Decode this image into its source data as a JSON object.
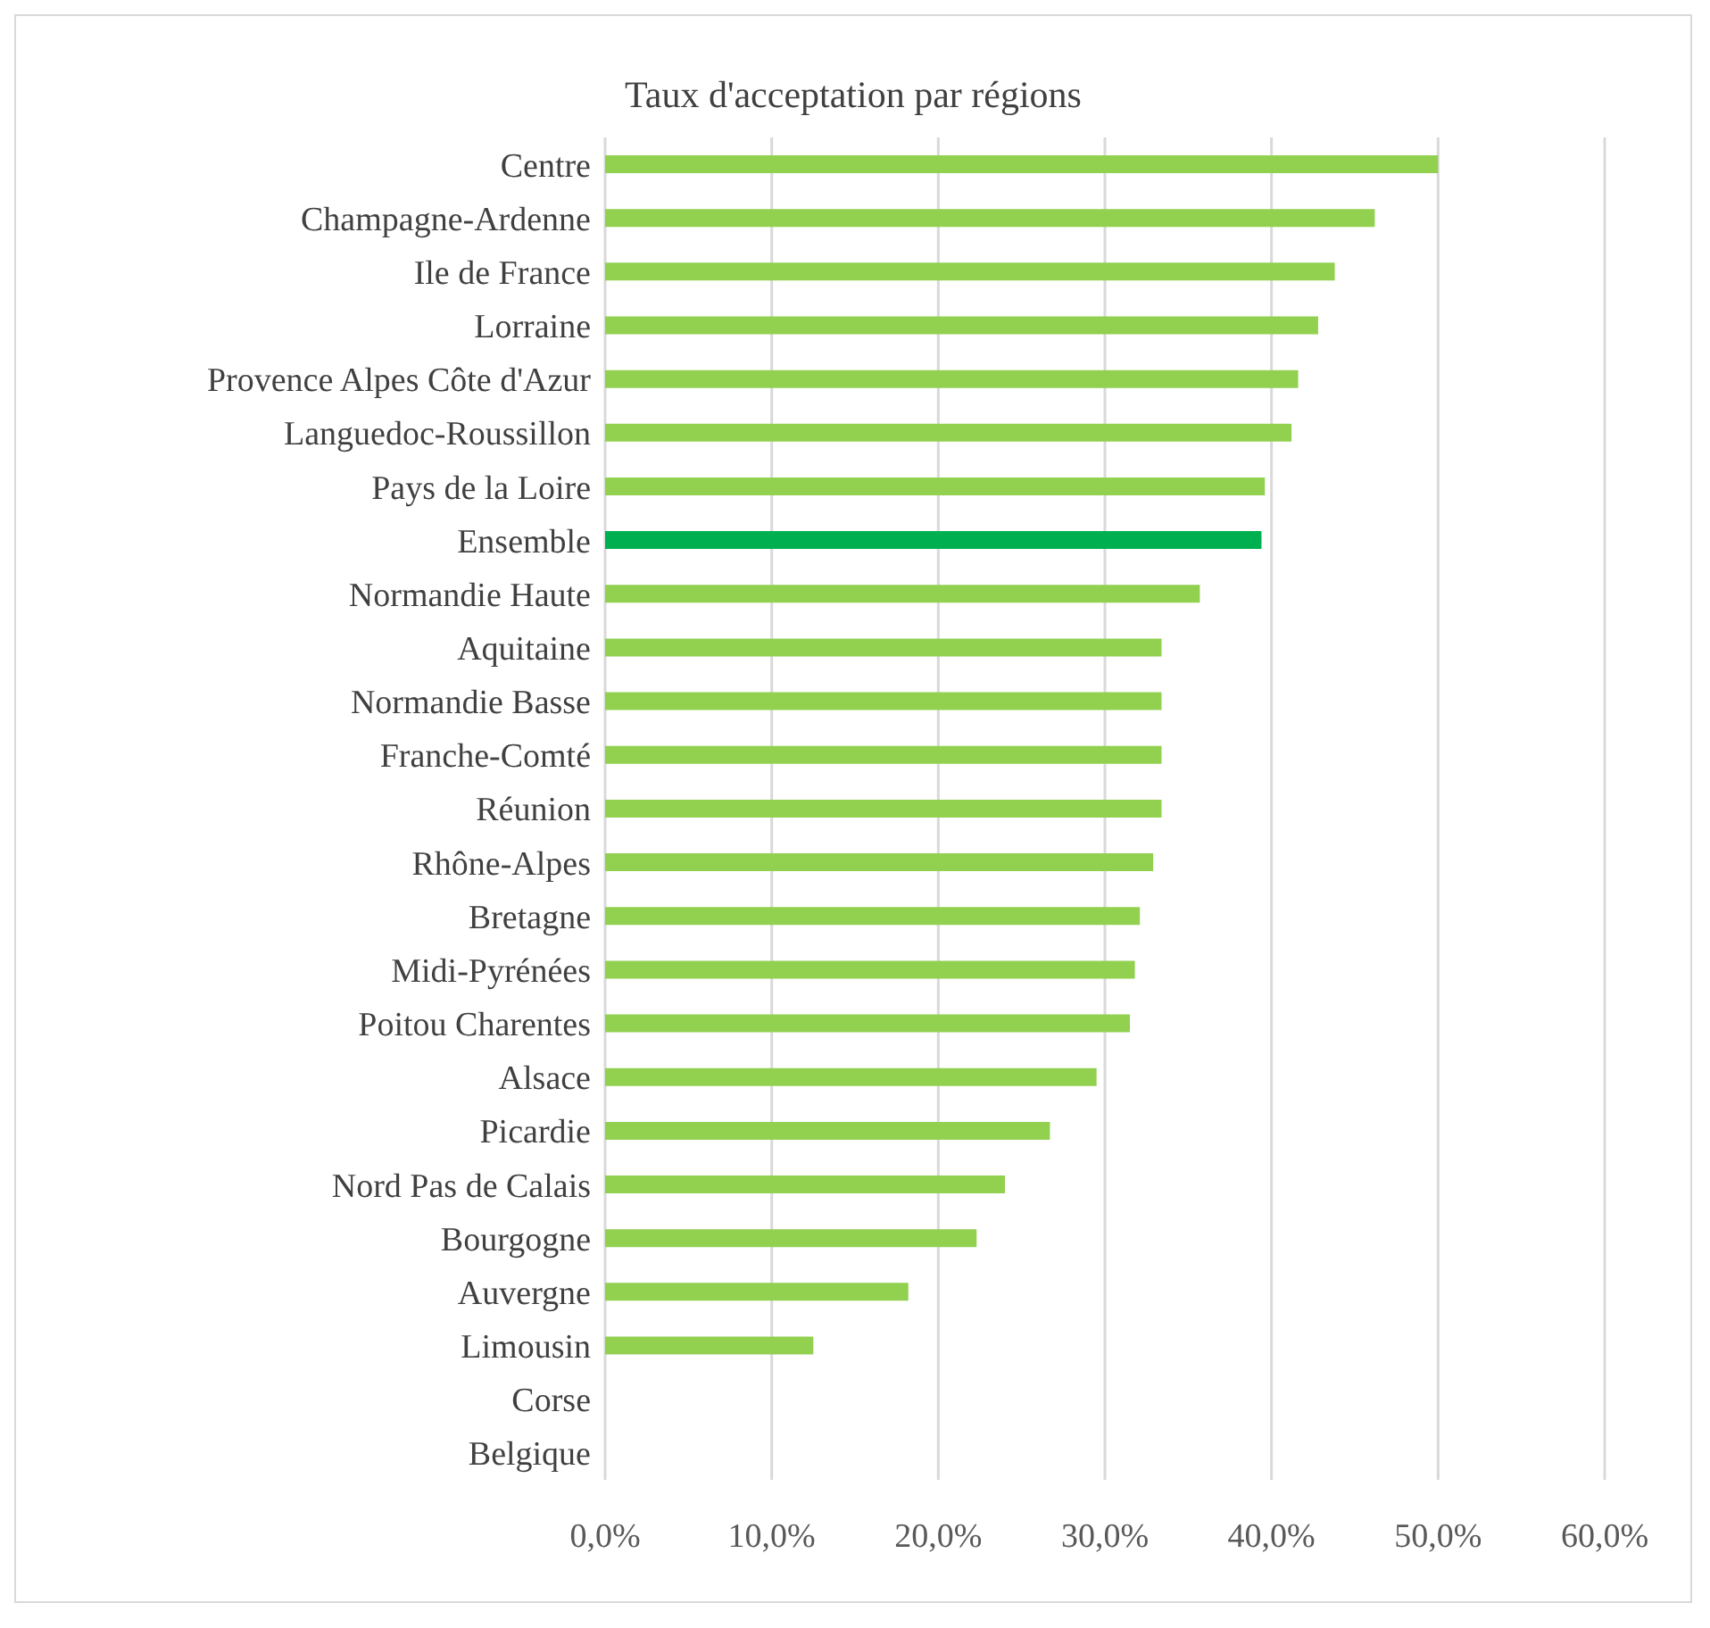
{
  "chart_data": {
    "type": "bar",
    "orientation": "horizontal",
    "title": "Taux d'acceptation par régions",
    "categories": [
      "Centre",
      "Champagne-Ardenne",
      "Ile de France",
      "Lorraine",
      "Provence Alpes Côte d'Azur",
      "Languedoc-Roussillon",
      "Pays de la Loire",
      "Ensemble",
      "Normandie Haute",
      "Aquitaine",
      "Normandie Basse",
      "Franche-Comté",
      "Réunion",
      "Rhône-Alpes",
      "Bretagne",
      "Midi-Pyrénées",
      "Poitou Charentes",
      "Alsace",
      "Picardie",
      "Nord Pas de Calais",
      "Bourgogne",
      "Auvergne",
      "Limousin",
      "Corse",
      "Belgique"
    ],
    "values": [
      50.0,
      46.2,
      43.8,
      42.8,
      41.6,
      41.2,
      39.6,
      39.4,
      35.7,
      33.4,
      33.4,
      33.4,
      33.4,
      32.9,
      32.1,
      31.8,
      31.5,
      29.5,
      26.7,
      24.0,
      22.3,
      18.2,
      12.5,
      0,
      0
    ],
    "colors": [
      "#92d050",
      "#92d050",
      "#92d050",
      "#92d050",
      "#92d050",
      "#92d050",
      "#92d050",
      "#00b050",
      "#92d050",
      "#92d050",
      "#92d050",
      "#92d050",
      "#92d050",
      "#92d050",
      "#92d050",
      "#92d050",
      "#92d050",
      "#92d050",
      "#92d050",
      "#92d050",
      "#92d050",
      "#92d050",
      "#92d050",
      "#92d050",
      "#92d050"
    ],
    "xlim": [
      0,
      60
    ],
    "xticks": [
      {
        "value": 0,
        "label": "0,0%"
      },
      {
        "value": 10,
        "label": "10,0%"
      },
      {
        "value": 20,
        "label": "20,0%"
      },
      {
        "value": 30,
        "label": "30,0%"
      },
      {
        "value": 40,
        "label": "40,0%"
      },
      {
        "value": 50,
        "label": "50,0%"
      },
      {
        "value": 60,
        "label": "60,0%"
      }
    ],
    "grid": "x",
    "legend": false
  }
}
